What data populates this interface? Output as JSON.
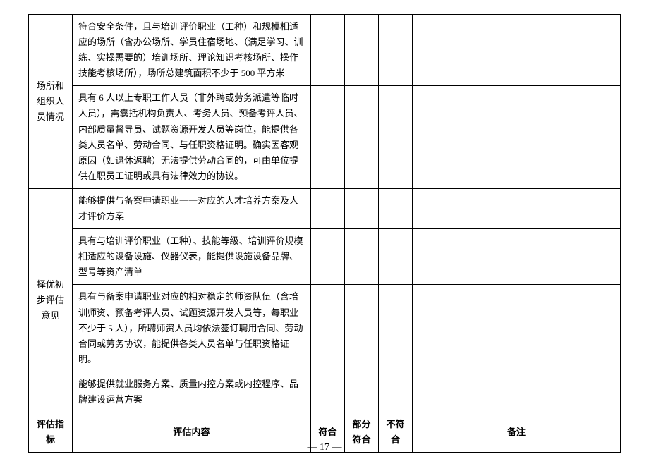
{
  "table": {
    "group1_label": "场所和组织人员情况",
    "group1_rows": [
      "符合安全条件，且与培训评价职业（工种）和规模相适应的场所（含办公场所、学员住宿场地、（满足学习、训练、实操需要的）培训场所、理论知识考核场所、操作技能考核场所），场所总建筑面积不少于 500 平方米",
      "具有 6 人以上专职工作人员（非外聘或劳务派遣等临时人员），需囊括机构负责人、考务人员、预备考评人员、内部质量督导员、试题资源开发人员等岗位，能提供各类人员名单、劳动合同、与任职资格证明。确实因客观原因（如退休返聘）无法提供劳动合同的，可由单位提供在职员工证明或具有法律效力的协议。"
    ],
    "group2_label": "择优初步评估意见",
    "group2_rows": [
      "能够提供与备案申请职业一一对应的人才培养方案及人才评价方案",
      "具有与培训评价职业（工种）、技能等级、培训评价规模相适应的设备设施、仪器仪表，能提供设施设备品牌、型号等资产清单",
      "具有与备案申请职业对应的相对稳定的师资队伍（含培训师资、预备考评人员、试题资源开发人员等，每职业不少于 5 人），所聘师资人员均依法签订聘用合同、劳动合同或劳务协议，能提供各类人员名单与任职资格证明。",
      "能够提供就业服务方案、质量内控方案或内控程序、品牌建设运营方案"
    ],
    "header": {
      "col1": "评估指标",
      "col2": "评估内容",
      "col3": "符合",
      "col4": "部分符合",
      "col5": "不符合",
      "col6": "备注"
    }
  },
  "page_number": "— 17 —"
}
